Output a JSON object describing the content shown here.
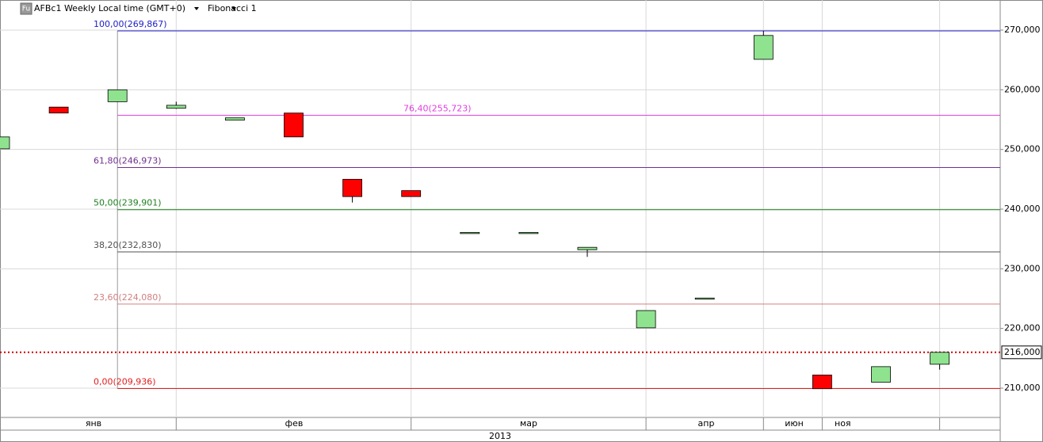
{
  "chart_data": {
    "type": "candlestick",
    "symbol": "AFBc1 Weekly Local time (GMT+0)",
    "icon": "Fu",
    "study": "Fibonacci 1",
    "up_color": "#8fe38f",
    "down_color": "#ff0000",
    "open": [
      250100,
      257100,
      258000,
      256900,
      254900,
      256100,
      245000,
      243100,
      235900,
      235900,
      233200,
      220100,
      224900,
      265100,
      212200,
      211000,
      214000
    ],
    "high": [
      252100,
      257100,
      260000,
      258000,
      255300,
      256100,
      245000,
      243100,
      236100,
      236100,
      233600,
      223000,
      225100,
      269900,
      212200,
      213600,
      216000
    ],
    "low": [
      250100,
      256100,
      258000,
      256800,
      254900,
      252100,
      241100,
      242100,
      235900,
      235900,
      232000,
      220100,
      224900,
      265100,
      209900,
      211000,
      213100
    ],
    "close": [
      252100,
      256100,
      260000,
      257400,
      255300,
      252100,
      242100,
      242100,
      236100,
      236100,
      233600,
      223000,
      225100,
      269100,
      209900,
      213600,
      216000
    ],
    "ylim": [
      205087,
      275044
    ],
    "yticks": [
      {
        "value": 210000,
        "label": "210,000"
      },
      {
        "value": 220000,
        "label": "220,000"
      },
      {
        "value": 230000,
        "label": "230,000"
      },
      {
        "value": 240000,
        "label": "240,000"
      },
      {
        "value": 250000,
        "label": "250,000"
      },
      {
        "value": 260000,
        "label": "260,000"
      },
      {
        "value": 270000,
        "label": "270,000"
      }
    ],
    "grid": true,
    "x_labels": [
      "янв",
      "фев",
      "мар",
      "апр",
      "июн",
      "ноя"
    ],
    "year": "2013",
    "fibonacci": [
      {
        "label": "100,00(269,867)",
        "value": 269867,
        "color": "#2020c8"
      },
      {
        "label": "76,40(255,723)",
        "value": 255723,
        "color": "#e040e0"
      },
      {
        "label": "61,80(246,973)",
        "value": 246973,
        "color": "#703090"
      },
      {
        "label": "50,00(239,901)",
        "value": 239901,
        "color": "#208020"
      },
      {
        "label": "38,20(232,830)",
        "value": 232830,
        "color": "#505050"
      },
      {
        "label": "23,60(224,080)",
        "value": 224080,
        "color": "#d08080"
      },
      {
        "label": "0,00(209,936)",
        "value": 209936,
        "color": "#e02020"
      }
    ],
    "last_price": {
      "value": 216000,
      "label": "216,000"
    }
  }
}
